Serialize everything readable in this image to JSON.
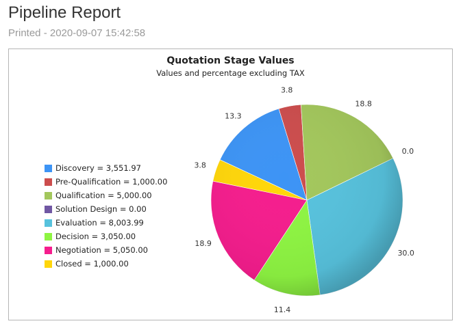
{
  "header": {
    "title": "Pipeline Report",
    "printed": "Printed - 2020-09-07 15:42:58"
  },
  "chart_data": {
    "type": "pie",
    "title": "Quotation Stage Values",
    "subtitle": "Values and percentage excluding TAX",
    "legend_position": "left",
    "slices": [
      {
        "label": "Discovery",
        "value": 3551.97,
        "value_text": "3,551.97",
        "percent": "13.3",
        "color": "#3d94f5"
      },
      {
        "label": "Pre-Qualification",
        "value": 1000.0,
        "value_text": "1,000.00",
        "percent": "3.8",
        "color": "#cc4d4d"
      },
      {
        "label": "Qualification",
        "value": 5000.0,
        "value_text": "5,000.00",
        "percent": "18.8",
        "color": "#a3c75c"
      },
      {
        "label": "Solution Design",
        "value": 0.0,
        "value_text": "0.00",
        "percent": "0.0",
        "color": "#7057a3"
      },
      {
        "label": "Evaluation",
        "value": 8003.99,
        "value_text": "8,003.99",
        "percent": "30.0",
        "color": "#57c2dd"
      },
      {
        "label": "Decision",
        "value": 3050.0,
        "value_text": "3,050.00",
        "percent": "11.4",
        "color": "#8ef542"
      },
      {
        "label": "Negotiation",
        "value": 5050.0,
        "value_text": "5,050.00",
        "percent": "18.9",
        "color": "#f51d8d"
      },
      {
        "label": "Closed",
        "value": 1000.0,
        "value_text": "1,000.00",
        "percent": "3.8",
        "color": "#ffd60a"
      }
    ]
  }
}
